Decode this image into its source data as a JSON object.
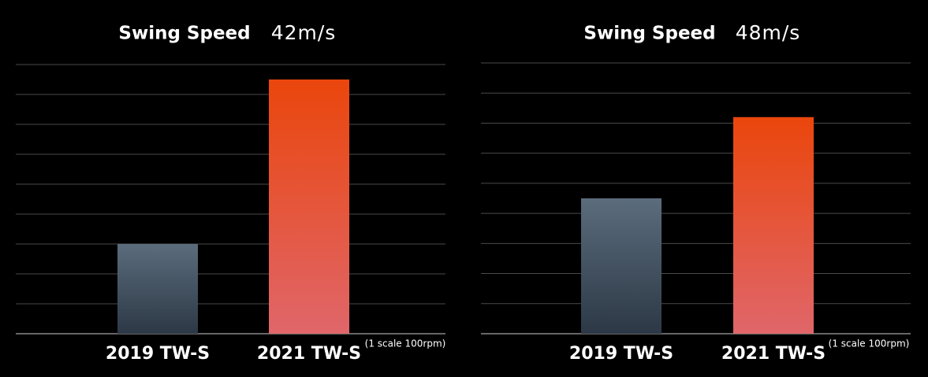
{
  "chart_data": [
    {
      "type": "bar",
      "title": "Swing Speed",
      "subtitle": "42m/s",
      "categories": [
        "2019 TW-S",
        "2021 TW-S"
      ],
      "values": [
        3,
        8.5
      ],
      "bar_gradients": [
        [
          "#5b6c7c",
          "#2c3846"
        ],
        [
          "#ea460c",
          "#e0666a"
        ]
      ],
      "ylim": [
        0,
        9
      ],
      "yticks": [
        0,
        1,
        2,
        3,
        4,
        5,
        6,
        7,
        8,
        9
      ],
      "grid": true,
      "annotation": "(1 scale 100rpm)"
    },
    {
      "type": "bar",
      "title": "Swing Speed",
      "subtitle": "48m/s",
      "categories": [
        "2019 TW-S",
        "2021 TW-S"
      ],
      "values": [
        4.5,
        7.2
      ],
      "bar_gradients": [
        [
          "#5b6c7c",
          "#2c3846"
        ],
        [
          "#ea460c",
          "#e0666a"
        ]
      ],
      "ylim": [
        0,
        9
      ],
      "yticks": [
        0,
        1,
        2,
        3,
        4,
        5,
        6,
        7,
        8,
        9
      ],
      "grid": true,
      "annotation": "(1 scale 100rpm)"
    }
  ]
}
